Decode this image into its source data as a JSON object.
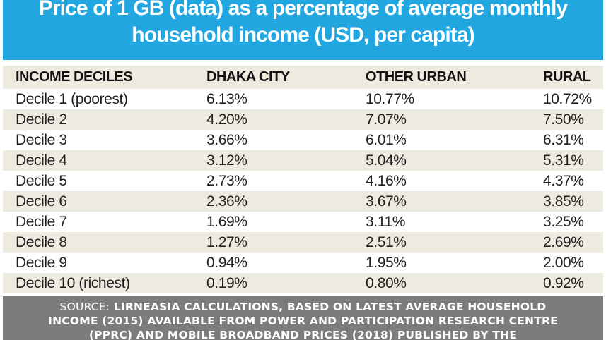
{
  "colors": {
    "title_bg": "#21A6DF",
    "title_text": "#FFFFFF",
    "stripe_bg": "#EDEAE0",
    "footer_bg": "#7C7C7C",
    "text_dark": "#231F20"
  },
  "title": {
    "line1": "Price of 1 GB (data) as a percentage of average monthly",
    "line2": "household income (USD, per capita)"
  },
  "table": {
    "columns": [
      "INCOME DECILES",
      "DHAKA CITY",
      "OTHER URBAN",
      "RURAL"
    ],
    "rows": [
      {
        "decile": "Decile 1 (poorest)",
        "dhaka_city": "6.13%",
        "other_urban": "10.77%",
        "rural": "10.72%"
      },
      {
        "decile": "Decile 2",
        "dhaka_city": "4.20%",
        "other_urban": "7.07%",
        "rural": "7.50%"
      },
      {
        "decile": "Decile 3",
        "dhaka_city": "3.66%",
        "other_urban": "6.01%",
        "rural": "6.31%"
      },
      {
        "decile": "Decile 4",
        "dhaka_city": "3.12%",
        "other_urban": "5.04%",
        "rural": "5.31%"
      },
      {
        "decile": "Decile 5",
        "dhaka_city": "2.73%",
        "other_urban": "4.16%",
        "rural": "4.37%"
      },
      {
        "decile": "Decile 6",
        "dhaka_city": "2.36%",
        "other_urban": "3.67%",
        "rural": "3.85%"
      },
      {
        "decile": "Decile 7",
        "dhaka_city": "1.69%",
        "other_urban": "3.11%",
        "rural": "3.25%"
      },
      {
        "decile": "Decile 8",
        "dhaka_city": "1.27%",
        "other_urban": "2.51%",
        "rural": "2.69%"
      },
      {
        "decile": "Decile 9",
        "dhaka_city": "0.94%",
        "other_urban": "1.95%",
        "rural": "2.00%"
      },
      {
        "decile": "Decile 10 (richest)",
        "dhaka_city": "0.19%",
        "other_urban": "0.80%",
        "rural": "0.92%"
      }
    ]
  },
  "footer": {
    "source_label": "SOURCE:",
    "line1": "LIRNEASIA CALCULATIONS, BASED ON LATEST AVERAGE HOUSEHOLD",
    "line2": "INCOME (2015) AVAILABLE FROM POWER AND PARTICIPATION RESEARCH CENTRE",
    "line3": "(PPRC) AND MOBILE BROADBAND PRICES (2018) PUBLISHED BY THE"
  },
  "chart_data": {
    "type": "table",
    "title": "Price of 1 GB (data) as a percentage of average monthly household income (USD, per capita)",
    "columns": [
      "INCOME DECILES",
      "DHAKA CITY",
      "OTHER URBAN",
      "RURAL"
    ],
    "unit": "percent",
    "rows": [
      [
        "Decile 1 (poorest)",
        6.13,
        10.77,
        10.72
      ],
      [
        "Decile 2",
        4.2,
        7.07,
        7.5
      ],
      [
        "Decile 3",
        3.66,
        6.01,
        6.31
      ],
      [
        "Decile 4",
        3.12,
        5.04,
        5.31
      ],
      [
        "Decile 5",
        2.73,
        4.16,
        4.37
      ],
      [
        "Decile 6",
        2.36,
        3.67,
        3.85
      ],
      [
        "Decile 7",
        1.69,
        3.11,
        3.25
      ],
      [
        "Decile 8",
        1.27,
        2.51,
        2.69
      ],
      [
        "Decile 9",
        0.94,
        1.95,
        2.0
      ],
      [
        "Decile 10 (richest)",
        0.19,
        0.8,
        0.92
      ]
    ],
    "source_note": "SOURCE: LIRNEASIA CALCULATIONS, BASED ON LATEST AVERAGE HOUSEHOLD INCOME (2015) AVAILABLE FROM POWER AND PARTICIPATION RESEARCH CENTRE (PPRC) AND MOBILE BROADBAND PRICES (2018) PUBLISHED BY THE"
  }
}
